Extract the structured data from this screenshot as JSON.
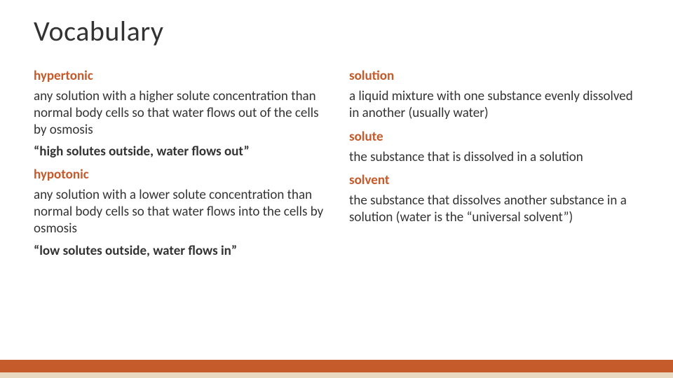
{
  "colors": {
    "term_color": "#c55a2b",
    "text_color": "#333333",
    "background": "#ffffff",
    "footer_orange": "#c55a2b",
    "footer_tan": "#e8d9c0"
  },
  "typography": {
    "title_fontsize": 40,
    "body_fontsize": 19,
    "font_family": "Calibri"
  },
  "title": "Vocabulary",
  "left": {
    "term1": "hypertonic",
    "def1": "any solution with a higher solute concentration than normal body cells so that water flows out of the cells by osmosis",
    "mnemonic1": "“high solutes outside, water flows out”",
    "term2": "hypotonic",
    "def2": "any solution with a lower solute concentration than normal body cells so that water flows into the cells by osmosis",
    "mnemonic2": "“low solutes outside, water flows in”"
  },
  "right": {
    "term1": "solution",
    "def1": "a liquid mixture with one substance evenly dissolved in another (usually water)",
    "term2": "solute",
    "def2": "the substance that is dissolved in a solution",
    "term3": "solvent",
    "def3": "the substance that dissolves another substance in a solution (water is the “universal solvent”)"
  }
}
